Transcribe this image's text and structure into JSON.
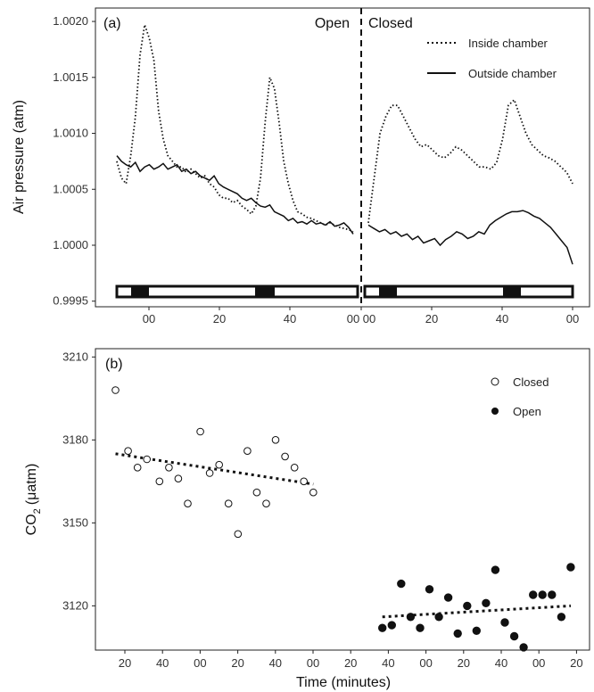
{
  "chart_data": [
    {
      "type": "line",
      "panel_label": "(a)",
      "ylabel": "Air pressure (atm)",
      "xlabel": "",
      "ylim": [
        0.99945,
        1.00212
      ],
      "x_ticks": [
        "00",
        "20",
        "40",
        "00",
        "00",
        "20",
        "40",
        "00"
      ],
      "y_ticks": [
        "0.9995",
        "1.0000",
        "1.0005",
        "1.0010",
        "1.0015",
        "1.0020"
      ],
      "y_tick_values": [
        0.9995,
        1.0,
        1.0005,
        1.001,
        1.0015,
        1.002
      ],
      "divider_labels": {
        "left": "Open",
        "right": "Closed"
      },
      "grid": false,
      "legend_position": "top-right",
      "series": [
        {
          "name": "Inside chamber",
          "style": "dotted",
          "segments": [
            [
              1.00075,
              1.0006,
              1.00055,
              1.0008,
              1.00115,
              1.0017,
              1.00197,
              1.00185,
              1.00165,
              1.0012,
              1.00095,
              1.0008,
              1.00075,
              1.0007,
              1.0007,
              1.00065,
              1.00068,
              1.00064,
              1.0006,
              1.00062,
              1.00055,
              1.00052,
              1.00045,
              1.00042,
              1.00042,
              1.00038,
              1.0004,
              1.00035,
              1.00032,
              1.00028,
              1.00035,
              1.0006,
              1.0011,
              1.0015,
              1.0014,
              1.0011,
              1.00075,
              1.00055,
              1.0004,
              1.0003,
              1.00028,
              1.00025,
              1.00024,
              1.00022,
              1.0002,
              1.00018,
              1.0002,
              1.00018,
              1.00016,
              1.00015,
              1.00014,
              1.00012
            ],
            [
              1.0002,
              1.0006,
              1.001,
              1.00115,
              1.00125,
              1.00125,
              1.00115,
              1.00105,
              1.00095,
              1.00088,
              1.0009,
              1.00085,
              1.0008,
              1.00078,
              1.00082,
              1.00088,
              1.00085,
              1.0008,
              1.00075,
              1.0007,
              1.0007,
              1.00068,
              1.00074,
              1.00095,
              1.00125,
              1.0013,
              1.00115,
              1.001,
              1.0009,
              1.00085,
              1.0008,
              1.00078,
              1.00075,
              1.0007,
              1.00065,
              1.00055
            ]
          ]
        },
        {
          "name": "Outside chamber",
          "style": "solid",
          "segments": [
            [
              1.0008,
              1.00075,
              1.00072,
              1.0007,
              1.00074,
              1.00066,
              1.0007,
              1.00072,
              1.00068,
              1.0007,
              1.00073,
              1.00068,
              1.0007,
              1.00072,
              1.00066,
              1.00068,
              1.00064,
              1.00066,
              1.00062,
              1.0006,
              1.00058,
              1.00062,
              1.00055,
              1.00052,
              1.0005,
              1.00048,
              1.00046,
              1.00042,
              1.0004,
              1.00042,
              1.00038,
              1.00035,
              1.00034,
              1.00036,
              1.0003,
              1.00028,
              1.00026,
              1.00022,
              1.00024,
              1.0002,
              1.00021,
              1.00019,
              1.00022,
              1.00019,
              1.0002,
              1.00018,
              1.00021,
              1.00017,
              1.00018,
              1.0002,
              1.00016,
              1.0001
            ],
            [
              1.00018,
              1.00015,
              1.00012,
              1.00014,
              1.0001,
              1.00012,
              1.00008,
              1.0001,
              1.00005,
              1.00008,
              1.00002,
              1.00004,
              1.00006,
              1.0,
              1.00005,
              1.00008,
              1.00012,
              1.0001,
              1.00006,
              1.00008,
              1.00012,
              1.0001,
              1.00018,
              1.00022,
              1.00025,
              1.00028,
              1.0003,
              1.0003,
              1.00031,
              1.00029,
              1.00026,
              1.00024,
              1.0002,
              1.00016,
              1.0001,
              1.00004,
              0.99998,
              0.99983
            ]
          ]
        }
      ]
    },
    {
      "type": "scatter",
      "panel_label": "(b)",
      "ylabel": "CO",
      "ylabel_sub": "2",
      "ylabel_unit": "(μatm)",
      "xlabel": "Time (minutes)",
      "ylim": [
        3104,
        3213
      ],
      "x_ticks": [
        "20",
        "40",
        "00",
        "20",
        "40",
        "00",
        "20",
        "40",
        "00",
        "20",
        "40",
        "00",
        "20"
      ],
      "y_ticks": [
        "3120",
        "3150",
        "3180",
        "3210"
      ],
      "y_tick_values": [
        3120,
        3150,
        3180,
        3210
      ],
      "grid": false,
      "legend_position": "top-right",
      "series": [
        {
          "name": "Closed",
          "marker": "open-circle",
          "points": [
            [
              0.1,
              3198
            ],
            [
              0.5,
              3176
            ],
            [
              0.8,
              3170
            ],
            [
              1.1,
              3173
            ],
            [
              1.5,
              3165
            ],
            [
              1.8,
              3170
            ],
            [
              2.1,
              3166
            ],
            [
              2.4,
              3157
            ],
            [
              2.8,
              3183
            ],
            [
              3.1,
              3168
            ],
            [
              3.4,
              3171
            ],
            [
              3.7,
              3157
            ],
            [
              4.0,
              3146
            ],
            [
              4.3,
              3176
            ],
            [
              4.6,
              3161
            ],
            [
              4.9,
              3157
            ],
            [
              5.2,
              3180
            ],
            [
              5.5,
              3174
            ],
            [
              5.8,
              3170
            ],
            [
              6.1,
              3165
            ],
            [
              6.4,
              3161
            ]
          ],
          "trend": [
            [
              0.1,
              3175
            ],
            [
              6.4,
              3164
            ]
          ]
        },
        {
          "name": "Open",
          "marker": "filled-circle",
          "points": [
            [
              8.6,
              3112
            ],
            [
              8.9,
              3113
            ],
            [
              9.2,
              3128
            ],
            [
              9.5,
              3116
            ],
            [
              9.8,
              3112
            ],
            [
              10.1,
              3126
            ],
            [
              10.4,
              3116
            ],
            [
              10.7,
              3123
            ],
            [
              11.0,
              3110
            ],
            [
              11.3,
              3120
            ],
            [
              11.6,
              3111
            ],
            [
              11.9,
              3121
            ],
            [
              12.2,
              3133
            ],
            [
              12.5,
              3114
            ],
            [
              12.8,
              3109
            ],
            [
              13.1,
              3105
            ],
            [
              13.4,
              3124
            ],
            [
              13.7,
              3124
            ],
            [
              14.0,
              3124
            ],
            [
              14.3,
              3116
            ],
            [
              14.6,
              3134
            ]
          ],
          "trend": [
            [
              8.6,
              3116
            ],
            [
              14.6,
              3120
            ]
          ]
        }
      ]
    }
  ]
}
